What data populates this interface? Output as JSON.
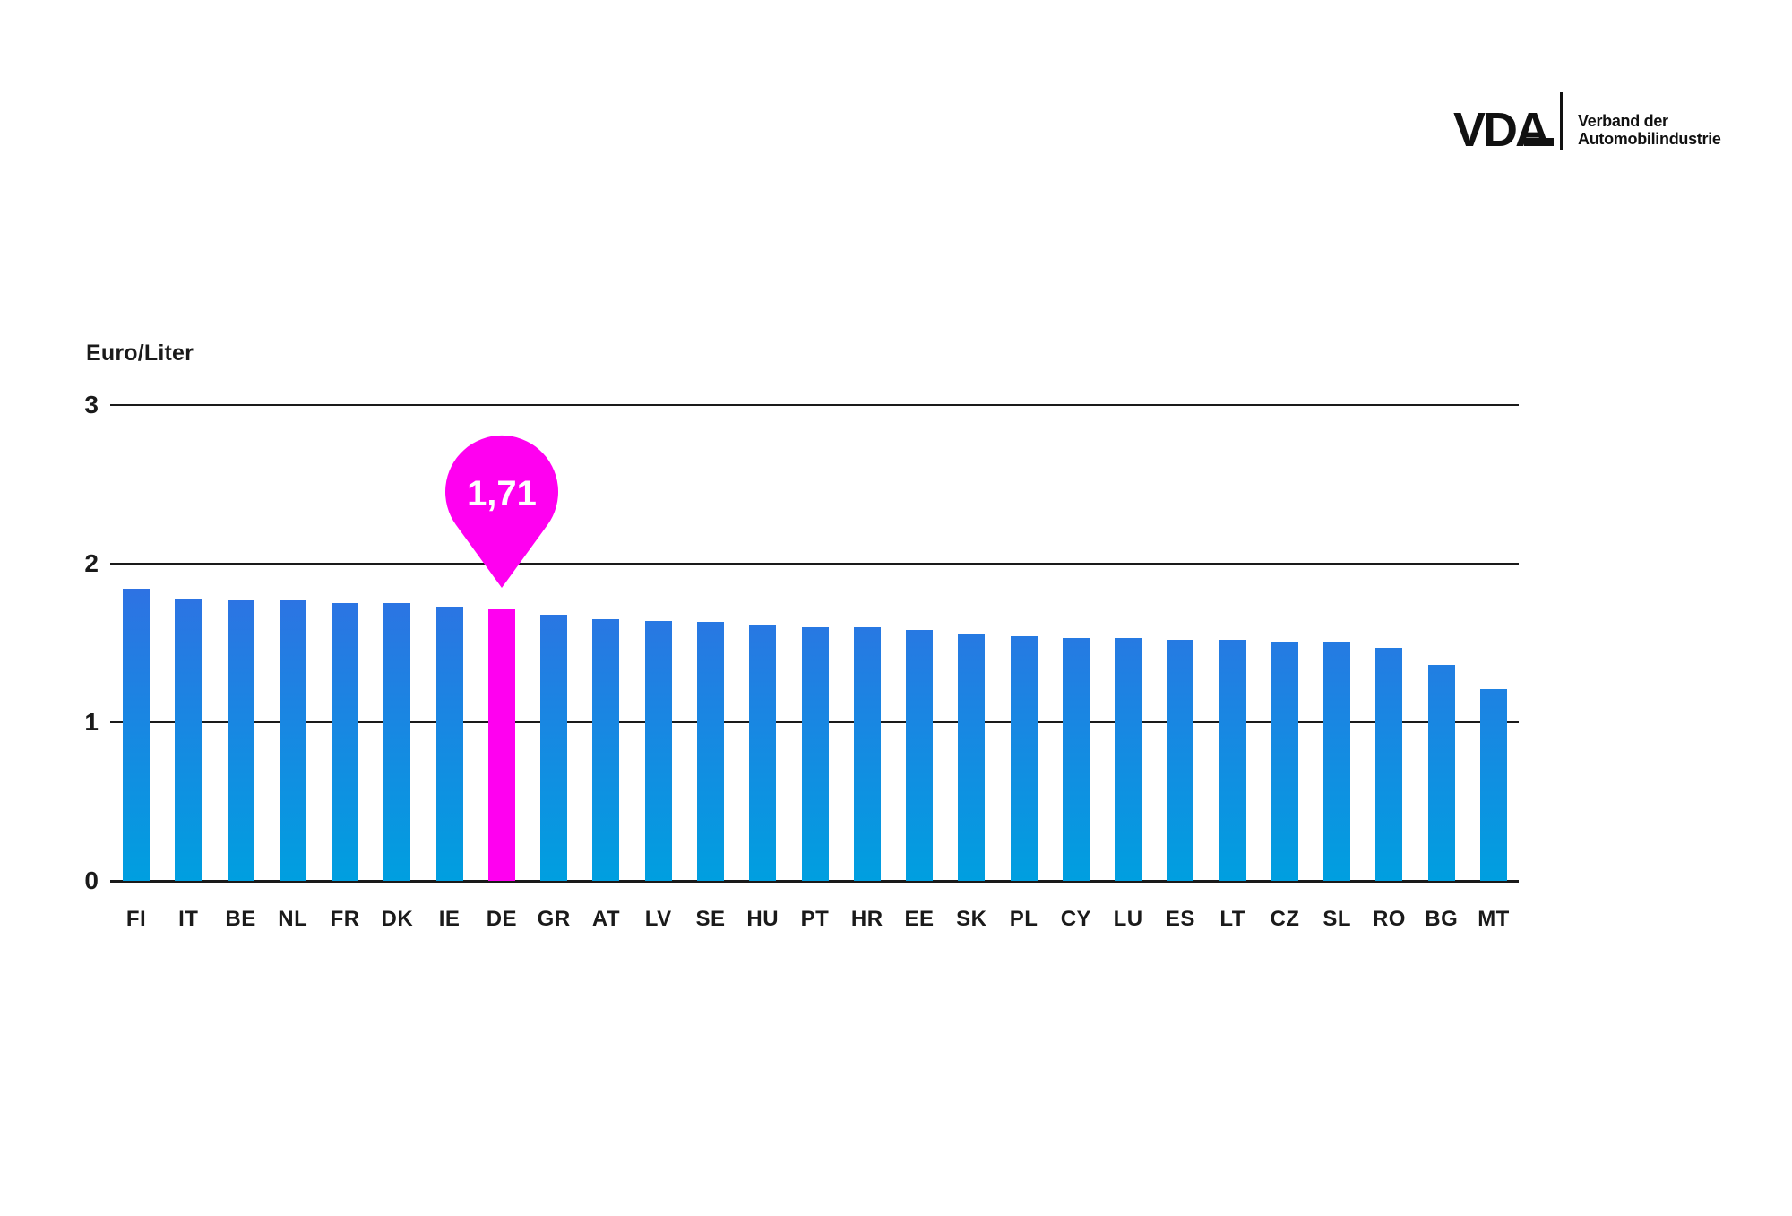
{
  "logo": {
    "brand": "VDA",
    "tagline_line1": "Verband der",
    "tagline_line2": "Automobilindustrie"
  },
  "chart_data": {
    "type": "bar",
    "title": "",
    "ylabel": "Euro/Liter",
    "xlabel": "",
    "ylim": [
      0,
      3
    ],
    "yticks": [
      3,
      2,
      1,
      0
    ],
    "grid": true,
    "legend_position": "none",
    "categories": [
      "FI",
      "IT",
      "BE",
      "NL",
      "FR",
      "DK",
      "IE",
      "DE",
      "GR",
      "AT",
      "LV",
      "SE",
      "HU",
      "PT",
      "HR",
      "EE",
      "SK",
      "PL",
      "CY",
      "LU",
      "ES",
      "LT",
      "CZ",
      "SL",
      "RO",
      "BG",
      "MT"
    ],
    "values": [
      1.84,
      1.78,
      1.77,
      1.77,
      1.75,
      1.75,
      1.73,
      1.71,
      1.68,
      1.65,
      1.64,
      1.63,
      1.61,
      1.6,
      1.6,
      1.58,
      1.56,
      1.54,
      1.53,
      1.53,
      1.52,
      1.52,
      1.51,
      1.51,
      1.47,
      1.36,
      1.21
    ],
    "highlight": {
      "category": "DE",
      "label": "1,71",
      "color": "#ff00f0"
    },
    "colors": {
      "bar_gradient_top": "#2e72e3",
      "bar_gradient_bottom": "#009fe0",
      "grid_line": "#1a1a1a",
      "text": "#1a1a1a"
    }
  }
}
